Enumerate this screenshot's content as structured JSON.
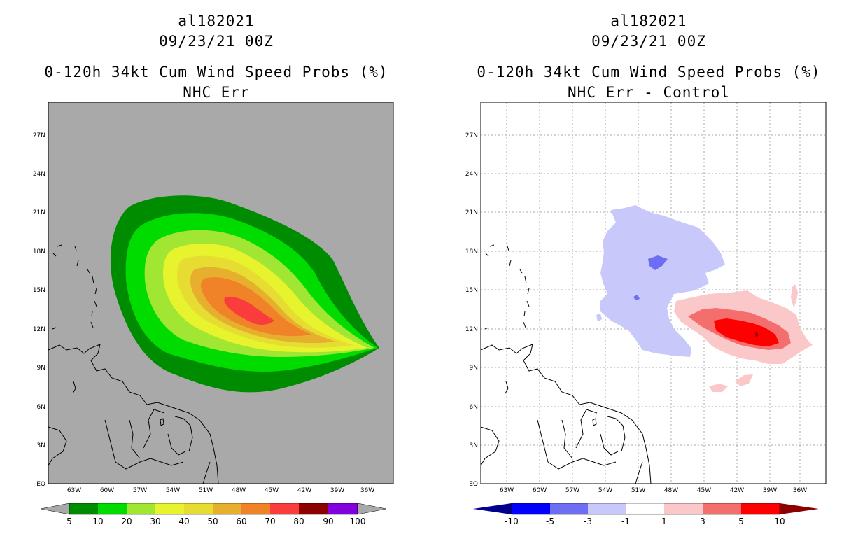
{
  "left_panel": {
    "storm_id": "al182021",
    "datetime": "09/23/21 00Z",
    "product": "0-120h 34kt Cum Wind Speed Probs (%)",
    "subtitle": "NHC Err",
    "background_color": "#a9a9a9",
    "colorbar": {
      "labels": [
        "5",
        "10",
        "20",
        "30",
        "40",
        "50",
        "60",
        "70",
        "80",
        "90",
        "100"
      ],
      "colors": [
        "#008c00",
        "#00dc00",
        "#a0e632",
        "#e6f32d",
        "#e6dc32",
        "#e6af2d",
        "#f08228",
        "#fa3c3c",
        "#8c0000",
        "#8200dc"
      ],
      "end_color": "#a9a9a9"
    }
  },
  "right_panel": {
    "storm_id": "al182021",
    "datetime": "09/23/21 00Z",
    "product": "0-120h 34kt Cum Wind Speed Probs (%)",
    "subtitle": "NHC Err - Control",
    "background_color": "#ffffff",
    "colorbar": {
      "labels": [
        "-10",
        "-5",
        "-3",
        "-1",
        "1",
        "3",
        "5",
        "10"
      ],
      "colors": [
        "#0000ff",
        "#6e6ef5",
        "#c8c8fa",
        "#ffffff",
        "#fac8c8",
        "#f56e6e",
        "#ff0000"
      ],
      "low_end_color": "#00008c",
      "high_end_color": "#8c0000"
    }
  },
  "axes": {
    "lon_labels": [
      "63W",
      "60W",
      "57W",
      "54W",
      "51W",
      "48W",
      "45W",
      "42W",
      "39W",
      "36W"
    ],
    "lat_labels": [
      "EQ",
      "3N",
      "6N",
      "9N",
      "12N",
      "15N",
      "18N",
      "21N",
      "24N",
      "27N"
    ]
  },
  "colors": {
    "prob_5": "#008c00",
    "prob_10": "#00dc00",
    "prob_20": "#a0e632",
    "prob_30": "#e6f32d",
    "prob_40": "#e6dc32",
    "prob_50": "#e6af2d",
    "prob_60": "#f08228",
    "prob_70": "#fa3c3c",
    "diff_neg3": "#c8c8fa",
    "diff_neg5": "#6e6ef5",
    "diff_pos1": "#fac8c8",
    "diff_pos3": "#f56e6e",
    "diff_pos5": "#ff0000",
    "diff_pos10": "#8c0000"
  }
}
